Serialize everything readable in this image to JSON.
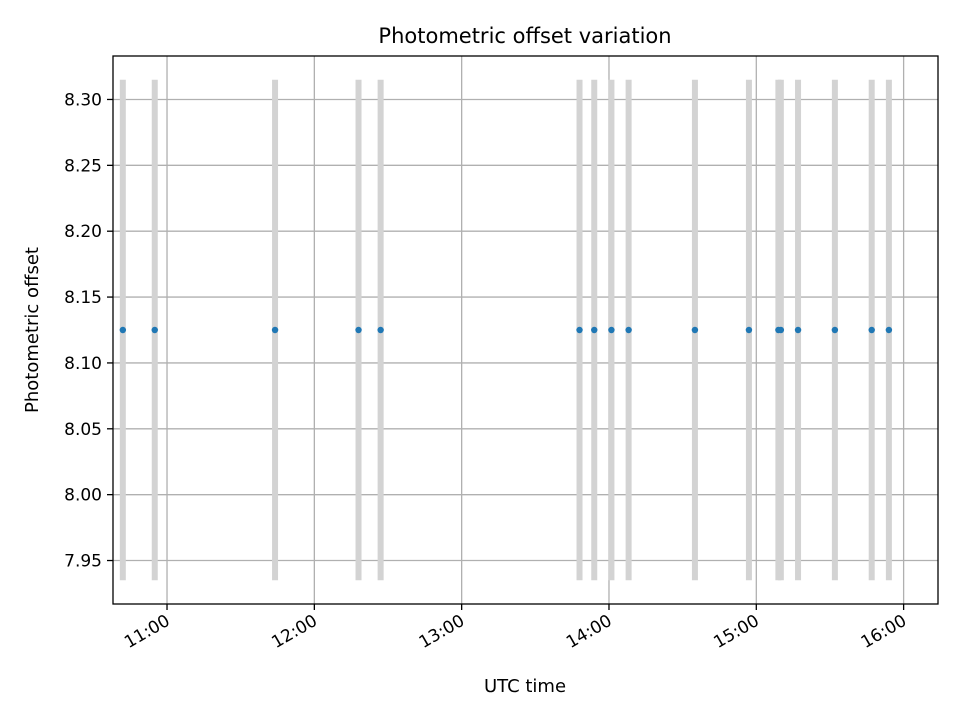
{
  "chart_data": {
    "type": "scatter",
    "title": "Photometric offset variation",
    "xlabel": "UTC time",
    "ylabel": "Photometric offset",
    "x_type": "time",
    "x_tick_labels": [
      "11:00",
      "12:00",
      "13:00",
      "14:00",
      "15:00",
      "16:00"
    ],
    "y_tick_labels": [
      "7.95",
      "8.00",
      "8.05",
      "8.10",
      "8.15",
      "8.20",
      "8.25",
      "8.30"
    ],
    "xlim": [
      "10:38",
      "16:14"
    ],
    "ylim": [
      7.917,
      8.333
    ],
    "grid": true,
    "legend": "none",
    "colors": {
      "points": "#1f77b4",
      "error_bars": "#d3d3d3",
      "grid": "#b0b0b0"
    },
    "series": [
      {
        "x": [
          "10:42",
          "10:55",
          "11:44",
          "12:18",
          "12:27",
          "13:48",
          "13:54",
          "14:01",
          "14:08",
          "14:35",
          "14:57",
          "15:09",
          "15:10",
          "15:17",
          "15:32",
          "15:47",
          "15:54"
        ],
        "y": [
          8.125,
          8.125,
          8.125,
          8.125,
          8.125,
          8.125,
          8.125,
          8.125,
          8.125,
          8.125,
          8.125,
          8.125,
          8.125,
          8.125,
          8.125,
          8.125,
          8.125
        ],
        "yerr": [
          0.19,
          0.19,
          0.19,
          0.19,
          0.19,
          0.19,
          0.19,
          0.19,
          0.19,
          0.19,
          0.19,
          0.19,
          0.19,
          0.19,
          0.19,
          0.19,
          0.19
        ]
      }
    ]
  }
}
